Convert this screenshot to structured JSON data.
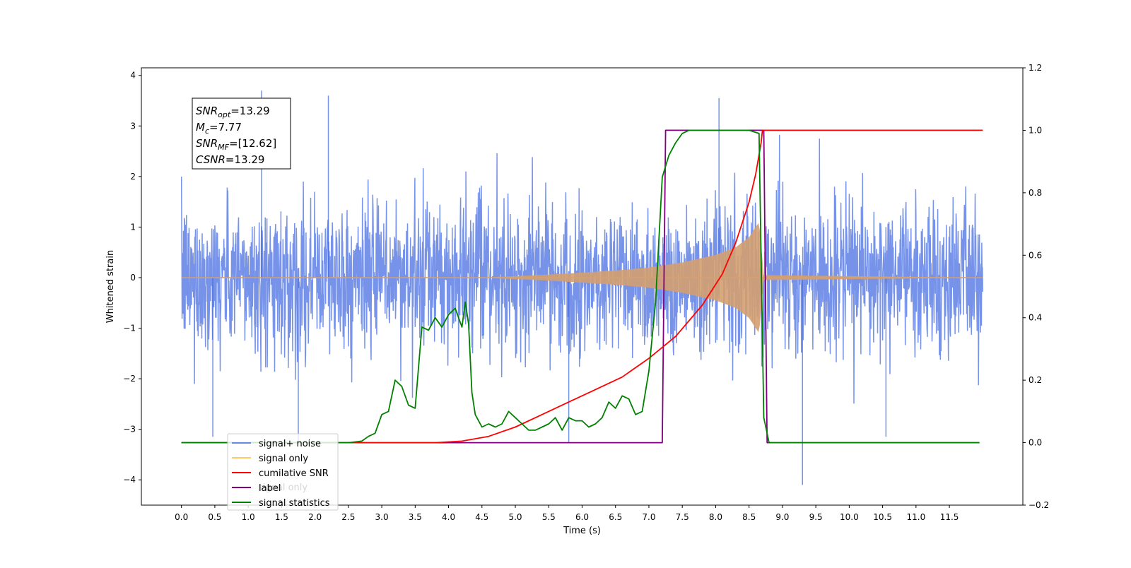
{
  "chart_data": {
    "type": "line",
    "title": "",
    "xlabel": "Time (s)",
    "ylabel": "Whitened strain",
    "y2label": "",
    "xlim": [
      -0.6,
      12.6
    ],
    "ylim": [
      -4.5,
      4.15
    ],
    "y2lim": [
      -0.2,
      1.2
    ],
    "x_ticks": [
      0.0,
      0.5,
      1.0,
      1.5,
      2.0,
      2.5,
      3.0,
      3.5,
      4.0,
      4.5,
      5.0,
      5.5,
      6.0,
      6.5,
      7.0,
      7.5,
      8.0,
      8.5,
      9.0,
      9.5,
      10.0,
      10.5,
      11.0,
      11.5
    ],
    "x_tick_labels": [
      "0.0",
      "0.5",
      "1.0",
      "1.5",
      "2.0",
      "2.5",
      "3.0",
      "3.5",
      "4.0",
      "4.5",
      "5.0",
      "5.5",
      "6.0",
      "6.5",
      "7.0",
      "7.5",
      "8.0",
      "8.5",
      "9.0",
      "9.5",
      "10.0",
      "10.5",
      "11.0",
      "11.5"
    ],
    "y_ticks": [
      -4,
      -3,
      -2,
      -1,
      0,
      1,
      2,
      3,
      4
    ],
    "y_tick_labels": [
      "−4",
      "−3",
      "−2",
      "−1",
      "0",
      "1",
      "2",
      "3",
      "4"
    ],
    "y2_ticks": [
      -0.2,
      0.0,
      0.2,
      0.4,
      0.6,
      0.8,
      1.0,
      1.2
    ],
    "y2_tick_labels": [
      "−0.2",
      "0.0",
      "0.2",
      "0.4",
      "0.6",
      "0.8",
      "1.0",
      "1.2"
    ],
    "grid": false,
    "legend_position": "lower-left",
    "annotation": [
      {
        "symbol": "SNR",
        "sub": "opt",
        "value": "=13.29"
      },
      {
        "symbol": "M",
        "sub": "c",
        "value": "=7.77"
      },
      {
        "symbol": "SNR",
        "sub": "MF",
        "value": "=[12.62]"
      },
      {
        "symbol": "CSNR",
        "sub": "",
        "value": "=13.29"
      }
    ],
    "series": [
      {
        "name": "signal+ noise",
        "axis": "left",
        "color": "#4169e1",
        "description": "Gaussian noise plus injected chirp, ~|2.2| band with spikes to ~3.7",
        "x_range": [
          0.0,
          12.0
        ],
        "envelope": 2.2,
        "notable_peaks": [
          [
            1.2,
            3.7
          ],
          [
            2.2,
            3.6
          ],
          [
            8.05,
            3.55
          ],
          [
            9.3,
            -4.1
          ],
          [
            1.75,
            -3.3
          ],
          [
            0.47,
            -3.15
          ],
          [
            10.55,
            -3.15
          ],
          [
            5.8,
            -3.25
          ]
        ]
      },
      {
        "name": "signal only",
        "axis": "left",
        "color": "#ffa500",
        "description": "Chirp waveform, amplitude growing from ~0 at 4.5 s to ~1.1 at merger 8.7 s, then ringdown",
        "x_range": [
          0.0,
          12.0
        ],
        "merger_time": 8.7,
        "amplitude_points": [
          [
            0.0,
            0.0
          ],
          [
            4.5,
            0.0
          ],
          [
            5.5,
            0.06
          ],
          [
            6.5,
            0.14
          ],
          [
            7.0,
            0.2
          ],
          [
            7.5,
            0.3
          ],
          [
            8.0,
            0.45
          ],
          [
            8.3,
            0.6
          ],
          [
            8.5,
            0.8
          ],
          [
            8.65,
            1.1
          ],
          [
            8.72,
            0.05
          ],
          [
            12.0,
            0.0
          ]
        ]
      },
      {
        "name": "cumilative SNR",
        "axis": "right",
        "color": "#ff0000",
        "x": [
          0.0,
          3.8,
          4.2,
          4.6,
          5.0,
          5.4,
          5.8,
          6.2,
          6.6,
          7.0,
          7.4,
          7.8,
          8.1,
          8.3,
          8.5,
          8.6,
          8.68,
          8.7,
          12.0
        ],
        "y": [
          0.0,
          0.0,
          0.005,
          0.02,
          0.05,
          0.09,
          0.13,
          0.17,
          0.21,
          0.27,
          0.34,
          0.44,
          0.54,
          0.64,
          0.77,
          0.86,
          0.96,
          1.0,
          1.0
        ]
      },
      {
        "name": "label",
        "axis": "right",
        "color": "#800080",
        "x": [
          0.0,
          7.2,
          7.25,
          8.72,
          8.77,
          11.95
        ],
        "y": [
          0.0,
          0.0,
          1.0,
          1.0,
          0.0,
          0.0
        ]
      },
      {
        "name": "signal statistics",
        "axis": "right",
        "color": "#008000",
        "x": [
          0.0,
          2.5,
          2.7,
          2.8,
          2.9,
          3.0,
          3.1,
          3.2,
          3.3,
          3.4,
          3.5,
          3.6,
          3.7,
          3.8,
          3.9,
          4.0,
          4.1,
          4.2,
          4.25,
          4.3,
          4.35,
          4.4,
          4.5,
          4.6,
          4.7,
          4.8,
          4.9,
          5.0,
          5.1,
          5.2,
          5.3,
          5.4,
          5.5,
          5.6,
          5.7,
          5.8,
          5.9,
          6.0,
          6.1,
          6.2,
          6.3,
          6.4,
          6.5,
          6.6,
          6.7,
          6.8,
          6.9,
          7.0,
          7.1,
          7.2,
          7.3,
          7.4,
          7.5,
          7.6,
          7.8,
          8.0,
          8.5,
          8.65,
          8.72,
          8.8,
          11.95
        ],
        "y": [
          0.0,
          0.0,
          0.005,
          0.02,
          0.03,
          0.09,
          0.1,
          0.2,
          0.18,
          0.12,
          0.11,
          0.37,
          0.36,
          0.4,
          0.37,
          0.41,
          0.43,
          0.37,
          0.45,
          0.38,
          0.16,
          0.09,
          0.05,
          0.06,
          0.05,
          0.06,
          0.1,
          0.08,
          0.06,
          0.04,
          0.04,
          0.05,
          0.06,
          0.08,
          0.04,
          0.08,
          0.07,
          0.07,
          0.05,
          0.06,
          0.08,
          0.13,
          0.11,
          0.15,
          0.14,
          0.09,
          0.1,
          0.23,
          0.45,
          0.85,
          0.92,
          0.96,
          0.99,
          1.0,
          1.0,
          1.0,
          1.0,
          0.99,
          0.08,
          0.0,
          0.0
        ]
      },
      {
        "name": "signal only",
        "axis": "right",
        "color": "#d3d3d3",
        "legend_only_ghost": true
      }
    ]
  }
}
